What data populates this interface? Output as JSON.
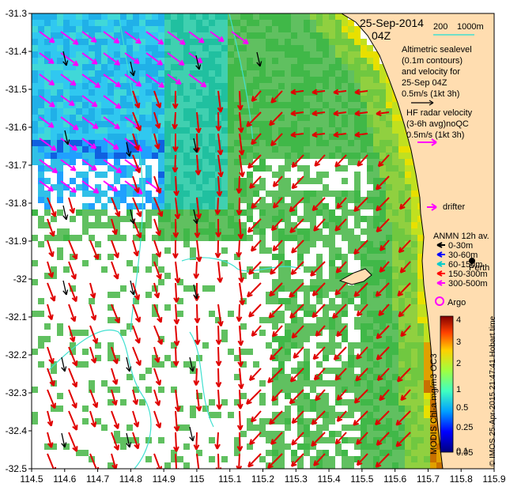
{
  "map": {
    "date": "25-Sep-2014",
    "time": "04Z",
    "isobaths": {
      "shallow": "200",
      "deep": "1000m",
      "color": "#40e0d0"
    },
    "altimetry_note": [
      "Altimetric sealevel",
      "(0.1m contours)",
      "and velocity for",
      "25-Sep 04Z",
      "0.5m/s (1kt 3h)"
    ],
    "hf_radar_note": [
      "HF radar velocity",
      "(3-6h avg)noQC",
      "0.5m/s (1kt 3h)"
    ],
    "drifter_label": "drifter",
    "anmn": {
      "title": "ANMN 12h av.",
      "items": [
        {
          "label": "0-30m",
          "color": "#000000"
        },
        {
          "label": "30-60m",
          "color": "#0000ff"
        },
        {
          "label": "60-150m",
          "color": "#00cccc"
        },
        {
          "label": "150-300m",
          "color": "#ff0000"
        },
        {
          "label": "300-500m",
          "color": "#ff00ff"
        }
      ]
    },
    "places": [
      {
        "name": "Perth"
      }
    ],
    "argo_label": "Argo",
    "colorbar": {
      "label": "MODIS Chl-a mg/m3 OC3",
      "ticks": [
        "4",
        "3",
        "2",
        "1",
        "0.5",
        "0.25",
        "0.1",
        "0.05"
      ]
    },
    "credit": "© IMOS 25-Apr-2015 21:47:41 Hobart time",
    "colors": {
      "land": "#ffddb0",
      "hf_arrows": "#e00000",
      "alt_arrows": "#ff00ff",
      "contours": "#40e0d0"
    }
  },
  "chart_data": {
    "type": "map",
    "xlim": [
      114.5,
      115.9
    ],
    "ylim": [
      -32.5,
      -31.3
    ],
    "xticks": [
      "114.5",
      "114.6",
      "114.7",
      "114.8",
      "114.9",
      "115",
      "115.1",
      "115.2",
      "115.3",
      "115.4",
      "115.5",
      "115.6",
      "115.7",
      "115.8",
      "115.9"
    ],
    "yticks": [
      "-31.3",
      "-31.4",
      "-31.5",
      "-31.6",
      "-31.7",
      "-31.8",
      "-31.9",
      "-32",
      "-32.1",
      "-32.2",
      "-32.3",
      "-32.4",
      "-32.5"
    ]
  }
}
